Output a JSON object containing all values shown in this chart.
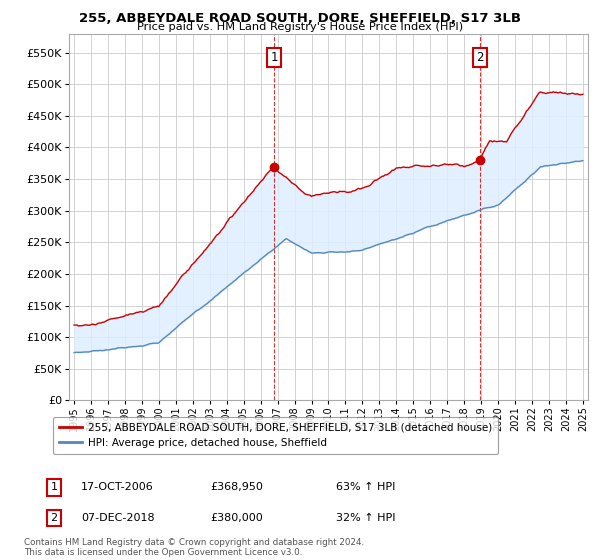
{
  "title1": "255, ABBEYDALE ROAD SOUTH, DORE, SHEFFIELD, S17 3LB",
  "title2": "Price paid vs. HM Land Registry's House Price Index (HPI)",
  "legend_line1": "255, ABBEYDALE ROAD SOUTH, DORE, SHEFFIELD, S17 3LB (detached house)",
  "legend_line2": "HPI: Average price, detached house, Sheffield",
  "annotation1_label": "1",
  "annotation1_date": "17-OCT-2006",
  "annotation1_price": "£368,950",
  "annotation1_hpi": "63% ↑ HPI",
  "annotation2_label": "2",
  "annotation2_date": "07-DEC-2018",
  "annotation2_price": "£380,000",
  "annotation2_hpi": "32% ↑ HPI",
  "footer": "Contains HM Land Registry data © Crown copyright and database right 2024.\nThis data is licensed under the Open Government Licence v3.0.",
  "sale1_x": 2006.79,
  "sale1_y": 368950,
  "sale2_x": 2018.92,
  "sale2_y": 380000,
  "red_color": "#cc0000",
  "blue_color": "#5588bb",
  "fill_color": "#ddeeff",
  "ylim_min": 0,
  "ylim_max": 580000,
  "xlim_min": 1994.7,
  "xlim_max": 2025.3,
  "background_color": "#ffffff",
  "grid_color": "#cccccc",
  "yticks": [
    0,
    50000,
    100000,
    150000,
    200000,
    250000,
    300000,
    350000,
    400000,
    450000,
    500000,
    550000
  ]
}
